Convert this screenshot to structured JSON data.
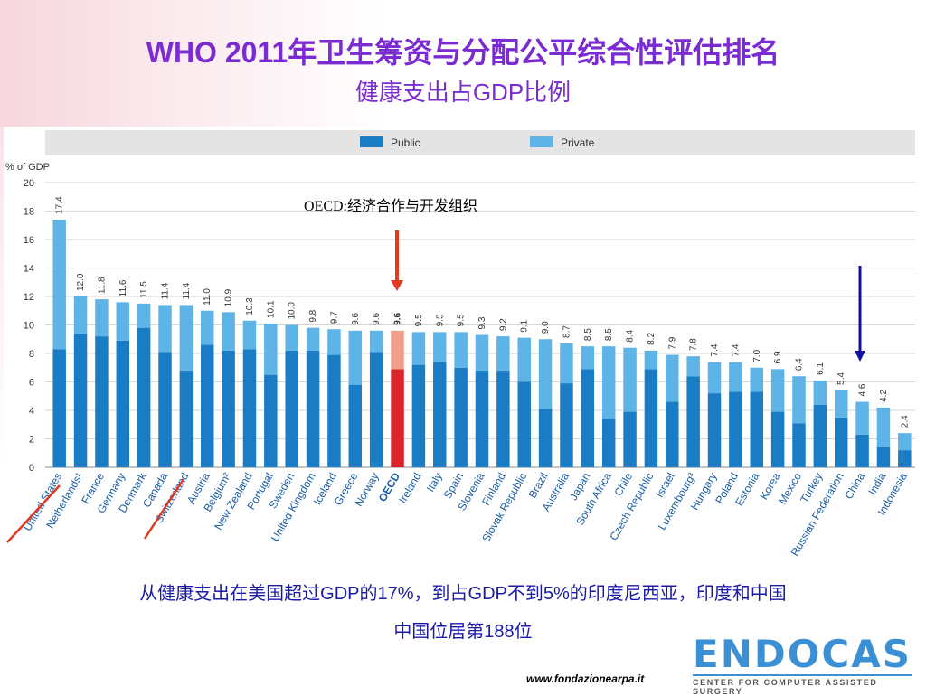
{
  "header": {
    "title": "WHO 2011年卫生筹资与分配公平综合性评估排名",
    "subtitle": "健康支出占GDP比例"
  },
  "annotation": {
    "oecd_note": "OECD:经济合作与开发组织"
  },
  "caption": {
    "line1": "从健康支出在美国超过GDP的17%，到占GDP不到5%的印度尼西亚，印度和中国",
    "line2": "中国位居第188位"
  },
  "footer": {
    "url": "www.fondazionearpa.it",
    "logo_text": "ENDOCAS",
    "logo_sub": "CENTER FOR COMPUTER ASSISTED SURGERY"
  },
  "colors": {
    "public": "#1a7cc4",
    "private": "#5eb4e6",
    "oecd_public": "#d9262b",
    "oecd_private": "#f0a08a",
    "red_arrow": "#e03a20",
    "blue_arrow": "#1010a0"
  },
  "chart_data": {
    "type": "bar",
    "stacked": true,
    "ylabel": "% of GDP",
    "ylim": [
      0,
      20
    ],
    "yticks": [
      0,
      2,
      4,
      6,
      8,
      10,
      12,
      14,
      16,
      18,
      20
    ],
    "legend": [
      "Public",
      "Private"
    ],
    "legend_position": "top",
    "grid": true,
    "categories": [
      "United States",
      "Netherlands¹",
      "France",
      "Germany",
      "Denmark",
      "Canada",
      "Switzerland",
      "Austria",
      "Belgium²",
      "New Zealand",
      "Portugal",
      "Sweden",
      "United Kingdom",
      "Iceland",
      "Greece",
      "Norway",
      "OECD",
      "Ireland",
      "Italy",
      "Spain",
      "Slovenia",
      "Finland",
      "Slovak Republic",
      "Brazil",
      "Australia",
      "Japan",
      "South Africa",
      "Chile",
      "Czech Republic",
      "Israel",
      "Luxembourg³",
      "Hungary",
      "Poland",
      "Estonia",
      "Korea",
      "Mexico",
      "Turkey",
      "Russian Federation",
      "China",
      "India",
      "Indonesia"
    ],
    "totals": [
      17.4,
      12.0,
      11.8,
      11.6,
      11.5,
      11.4,
      11.4,
      11.0,
      10.9,
      10.3,
      10.1,
      10.0,
      9.8,
      9.7,
      9.6,
      9.6,
      9.6,
      9.5,
      9.5,
      9.5,
      9.3,
      9.2,
      9.1,
      9.0,
      8.7,
      8.5,
      8.5,
      8.4,
      8.2,
      7.9,
      7.8,
      7.4,
      7.4,
      7.0,
      6.9,
      6.4,
      6.1,
      5.4,
      4.6,
      4.2,
      2.4
    ],
    "total_labels": [
      "17.4",
      "12.0",
      "11.8",
      "11.6",
      "11.5",
      "11.4",
      "11.4",
      "11.0",
      "10.9",
      "10.3",
      "10.1",
      "10.0",
      "9.8",
      "9.7",
      "9.6",
      "9.6",
      "9.6",
      "9.5",
      "9.5",
      "9.5",
      "9.3",
      "9.2",
      "9.1",
      "9.0",
      "8.7",
      "8.5",
      "8.5",
      "8.4",
      "8.2",
      "7.9",
      "7.8",
      "7.4",
      "7.4",
      "7.0",
      "6.9",
      "6.4",
      "6.1",
      "5.4",
      "4.6",
      "4.2",
      "2.4"
    ],
    "series": [
      {
        "name": "Public",
        "values": [
          8.3,
          9.4,
          9.2,
          8.9,
          9.8,
          8.1,
          6.8,
          8.6,
          8.2,
          8.3,
          6.5,
          8.2,
          8.2,
          7.9,
          5.8,
          8.1,
          6.9,
          7.2,
          7.4,
          7.0,
          6.8,
          6.8,
          6.0,
          4.1,
          5.9,
          6.9,
          3.4,
          3.9,
          6.9,
          4.6,
          6.4,
          5.2,
          5.3,
          5.3,
          3.9,
          3.1,
          4.4,
          3.5,
          2.3,
          1.4,
          1.2
        ]
      },
      {
        "name": "Private",
        "values": [
          9.1,
          2.6,
          2.6,
          2.7,
          1.7,
          3.3,
          4.6,
          2.4,
          2.7,
          2.0,
          3.6,
          1.8,
          1.6,
          1.8,
          3.8,
          1.5,
          2.7,
          2.3,
          2.1,
          2.5,
          2.5,
          2.4,
          3.1,
          4.9,
          2.8,
          1.6,
          5.1,
          4.5,
          1.3,
          3.3,
          1.4,
          2.2,
          2.1,
          1.7,
          3.0,
          3.3,
          1.7,
          1.9,
          2.3,
          2.8,
          1.2
        ]
      }
    ],
    "highlight_category": "OECD"
  }
}
